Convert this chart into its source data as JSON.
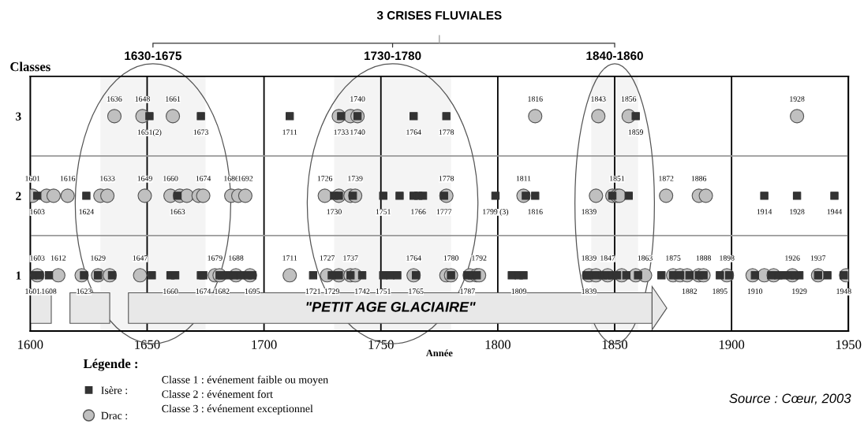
{
  "chart_data": {
    "type": "scatter",
    "title": "3 CRISES FLUVIALES",
    "xlabel": "Année",
    "ylabel": "Classes",
    "legend_title": "Légende :",
    "xlim": [
      1600,
      1950
    ],
    "xticks": [
      1600,
      1650,
      1700,
      1750,
      1800,
      1850,
      1900,
      1950
    ],
    "ylim": [
      0.3,
      3.5
    ],
    "yticks": [
      1,
      2,
      3
    ],
    "grid": "x",
    "legend": "bottom left",
    "series": [
      {
        "name": "Isère :",
        "color": "#333333",
        "marker": "square",
        "x": [
          1651,
          1673,
          1711,
          1733,
          1740,
          1764,
          1778,
          1859,
          1603,
          1624,
          1663,
          1730,
          1732,
          1738,
          1751,
          1758,
          1764,
          1766,
          1768,
          1777,
          1799,
          1812,
          1816,
          1849,
          1856,
          1914,
          1928,
          1944,
          1601,
          1604,
          1608,
          1623,
          1629,
          1635,
          1652,
          1660,
          1662,
          1673,
          1674,
          1681,
          1682,
          1685,
          1687,
          1690,
          1693,
          1695,
          1721,
          1729,
          1732,
          1737,
          1742,
          1751,
          1754,
          1757,
          1765,
          1780,
          1787,
          1789,
          1791,
          1806,
          1809,
          1811,
          1838,
          1839,
          1842,
          1845,
          1847,
          1849,
          1851,
          1855,
          1860,
          1870,
          1875,
          1878,
          1882,
          1886,
          1888,
          1895,
          1899,
          1910,
          1917,
          1920,
          1922,
          1925,
          1927,
          1929,
          1937,
          1941,
          1948
        ],
        "values": [
          3,
          3,
          3,
          3,
          3,
          3,
          3,
          3,
          2,
          2,
          2,
          2,
          2,
          2,
          2,
          2,
          2,
          2,
          2,
          2,
          2,
          2,
          2,
          2,
          2,
          2,
          2,
          2,
          1,
          1,
          1,
          1,
          1,
          1,
          1,
          1,
          1,
          1,
          1,
          1,
          1,
          1,
          1,
          1,
          1,
          1,
          1,
          1,
          1,
          1,
          1,
          1,
          1,
          1,
          1,
          1,
          1,
          1,
          1,
          1,
          1,
          1,
          1,
          1,
          1,
          1,
          1,
          1,
          1,
          1,
          1,
          1,
          1,
          1,
          1,
          1,
          1,
          1,
          1,
          1,
          1,
          1,
          1,
          1,
          1,
          1,
          1,
          1,
          1
        ]
      },
      {
        "name": "Drac :",
        "color": "#c0c0c0",
        "marker": "circle",
        "x": [
          1636,
          1648,
          1661,
          1732,
          1737,
          1740,
          1816,
          1843,
          1856,
          1928,
          1601,
          1607,
          1610,
          1616,
          1630,
          1633,
          1649,
          1660,
          1664,
          1667,
          1672,
          1674,
          1686,
          1689,
          1692,
          1726,
          1732,
          1737,
          1739,
          1778,
          1811,
          1842,
          1849,
          1851,
          1852,
          1872,
          1886,
          1889,
          1603,
          1612,
          1622,
          1629,
          1634,
          1647,
          1679,
          1681,
          1688,
          1694,
          1711,
          1727,
          1732,
          1737,
          1739,
          1764,
          1778,
          1780,
          1788,
          1791,
          1792,
          1839,
          1842,
          1847,
          1853,
          1859,
          1863,
          1875,
          1878,
          1881,
          1886,
          1888,
          1898,
          1909,
          1914,
          1918,
          1926,
          1937,
          1949
        ],
        "values": [
          3,
          3,
          3,
          3,
          3,
          3,
          3,
          3,
          3,
          3,
          2,
          2,
          2,
          2,
          2,
          2,
          2,
          2,
          2,
          2,
          2,
          2,
          2,
          2,
          2,
          2,
          2,
          2,
          2,
          2,
          2,
          2,
          2,
          2,
          2,
          2,
          2,
          2,
          1,
          1,
          1,
          1,
          1,
          1,
          1,
          1,
          1,
          1,
          1,
          1,
          1,
          1,
          1,
          1,
          1,
          1,
          1,
          1,
          1,
          1,
          1,
          1,
          1,
          1,
          1,
          1,
          1,
          1,
          1,
          1,
          1,
          1,
          1,
          1,
          1,
          1,
          1
        ]
      }
    ],
    "bands": [
      {
        "axis": "x",
        "from": 1630,
        "to": 1675,
        "label": "1630-1675"
      },
      {
        "axis": "x",
        "from": 1730,
        "to": 1780,
        "label": "1730-1780"
      },
      {
        "axis": "x",
        "from": 1840,
        "to": 1860,
        "label": "1840-1860"
      },
      {
        "axis": "x",
        "from": 1600,
        "to": 1609,
        "color": "#e8e8e8"
      },
      {
        "axis": "x",
        "from": 1617,
        "to": 1634,
        "color": "#e8e8e8"
      },
      {
        "axis": "x",
        "from": 1642,
        "to": 1866,
        "label": "\"PETIT AGE GLACIAIRE\"",
        "color": "#e8e8e8"
      }
    ],
    "ref_lines": [
      {
        "axis": "y",
        "value": 1.5,
        "color": "#999999"
      },
      {
        "axis": "y",
        "value": 2.5,
        "color": "#999999"
      }
    ],
    "annotations": [
      {
        "text": "1636",
        "x": 1636,
        "y": 3
      },
      {
        "text": "1648",
        "x": 1648,
        "y": 3
      },
      {
        "text": "1661",
        "x": 1661,
        "y": 3
      },
      {
        "text": "1651(2)",
        "x": 1651,
        "y": 3
      },
      {
        "text": "1673",
        "x": 1673,
        "y": 3
      },
      {
        "text": "1711",
        "x": 1711,
        "y": 3
      },
      {
        "text": "1740",
        "x": 1740,
        "y": 3
      },
      {
        "text": "1733",
        "x": 1733,
        "y": 3
      },
      {
        "text": "1740",
        "x": 1740,
        "y": 3
      },
      {
        "text": "1764",
        "x": 1764,
        "y": 3
      },
      {
        "text": "1778",
        "x": 1778,
        "y": 3
      },
      {
        "text": "1816",
        "x": 1816,
        "y": 3
      },
      {
        "text": "1843",
        "x": 1843,
        "y": 3
      },
      {
        "text": "1856",
        "x": 1856,
        "y": 3
      },
      {
        "text": "1859",
        "x": 1859,
        "y": 3
      },
      {
        "text": "1928",
        "x": 1928,
        "y": 3
      },
      {
        "text": "1601",
        "x": 1601,
        "y": 2
      },
      {
        "text": "1616",
        "x": 1616,
        "y": 2
      },
      {
        "text": "1633",
        "x": 1633,
        "y": 2
      },
      {
        "text": "1649",
        "x": 1649,
        "y": 2
      },
      {
        "text": "1660",
        "x": 1660,
        "y": 2
      },
      {
        "text": "1674",
        "x": 1674,
        "y": 2
      },
      {
        "text": "1686",
        "x": 1686,
        "y": 2
      },
      {
        "text": "1692",
        "x": 1692,
        "y": 2
      },
      {
        "text": "1603",
        "x": 1603,
        "y": 2
      },
      {
        "text": "1624",
        "x": 1624,
        "y": 2
      },
      {
        "text": "1663",
        "x": 1663,
        "y": 2
      },
      {
        "text": "1726",
        "x": 1726,
        "y": 2
      },
      {
        "text": "1739",
        "x": 1739,
        "y": 2
      },
      {
        "text": "1730",
        "x": 1730,
        "y": 2
      },
      {
        "text": "1751",
        "x": 1751,
        "y": 2
      },
      {
        "text": "1766",
        "x": 1766,
        "y": 2
      },
      {
        "text": "1778",
        "x": 1778,
        "y": 2
      },
      {
        "text": "1777",
        "x": 1777,
        "y": 2
      },
      {
        "text": "1799 (3)",
        "x": 1799,
        "y": 2
      },
      {
        "text": "1811",
        "x": 1811,
        "y": 2
      },
      {
        "text": "1816",
        "x": 1816,
        "y": 2
      },
      {
        "text": "1839",
        "x": 1839,
        "y": 2
      },
      {
        "text": "1851",
        "x": 1851,
        "y": 2
      },
      {
        "text": "1872",
        "x": 1872,
        "y": 2
      },
      {
        "text": "1886",
        "x": 1886,
        "y": 2
      },
      {
        "text": "1914",
        "x": 1914,
        "y": 2
      },
      {
        "text": "1928",
        "x": 1928,
        "y": 2
      },
      {
        "text": "1944",
        "x": 1944,
        "y": 2
      },
      {
        "text": "1603",
        "x": 1603,
        "y": 1
      },
      {
        "text": "1612",
        "x": 1612,
        "y": 1
      },
      {
        "text": "1629",
        "x": 1629,
        "y": 1
      },
      {
        "text": "1647",
        "x": 1647,
        "y": 1
      },
      {
        "text": "1679",
        "x": 1679,
        "y": 1
      },
      {
        "text": "1688",
        "x": 1688,
        "y": 1
      },
      {
        "text": "1601",
        "x": 1601,
        "y": 1
      },
      {
        "text": "1608",
        "x": 1608,
        "y": 1
      },
      {
        "text": "1623",
        "x": 1623,
        "y": 1
      },
      {
        "text": "1660",
        "x": 1660,
        "y": 1
      },
      {
        "text": "1674",
        "x": 1674,
        "y": 1
      },
      {
        "text": "1682",
        "x": 1682,
        "y": 1
      },
      {
        "text": "1695",
        "x": 1695,
        "y": 1
      },
      {
        "text": "1711",
        "x": 1711,
        "y": 1
      },
      {
        "text": "1727",
        "x": 1727,
        "y": 1
      },
      {
        "text": "1737",
        "x": 1737,
        "y": 1
      },
      {
        "text": "1764",
        "x": 1764,
        "y": 1
      },
      {
        "text": "1780",
        "x": 1780,
        "y": 1
      },
      {
        "text": "1792",
        "x": 1792,
        "y": 1
      },
      {
        "text": "1721",
        "x": 1721,
        "y": 1
      },
      {
        "text": "1729",
        "x": 1729,
        "y": 1
      },
      {
        "text": "1742",
        "x": 1742,
        "y": 1
      },
      {
        "text": "1751",
        "x": 1751,
        "y": 1
      },
      {
        "text": "1765",
        "x": 1765,
        "y": 1
      },
      {
        "text": "1787",
        "x": 1787,
        "y": 1
      },
      {
        "text": "1809",
        "x": 1809,
        "y": 1
      },
      {
        "text": "1839",
        "x": 1839,
        "y": 1
      },
      {
        "text": "1847",
        "x": 1847,
        "y": 1
      },
      {
        "text": "1863",
        "x": 1863,
        "y": 1
      },
      {
        "text": "1875",
        "x": 1875,
        "y": 1
      },
      {
        "text": "1888",
        "x": 1888,
        "y": 1
      },
      {
        "text": "1898",
        "x": 1898,
        "y": 1
      },
      {
        "text": "1926",
        "x": 1926,
        "y": 1
      },
      {
        "text": "1937",
        "x": 1937,
        "y": 1
      },
      {
        "text": "1839",
        "x": 1839,
        "y": 1
      },
      {
        "text": "1882",
        "x": 1882,
        "y": 1
      },
      {
        "text": "1895",
        "x": 1895,
        "y": 1
      },
      {
        "text": "1910",
        "x": 1910,
        "y": 1
      },
      {
        "text": "1929",
        "x": 1929,
        "y": 1
      },
      {
        "text": "1948",
        "x": 1948,
        "y": 1
      },
      "Classe 1 : événement faible ou moyen",
      "Classe 2 : événement fort",
      "Classe 3 : événement exceptionnel",
      "Source : Cœur, 2003"
    ]
  }
}
